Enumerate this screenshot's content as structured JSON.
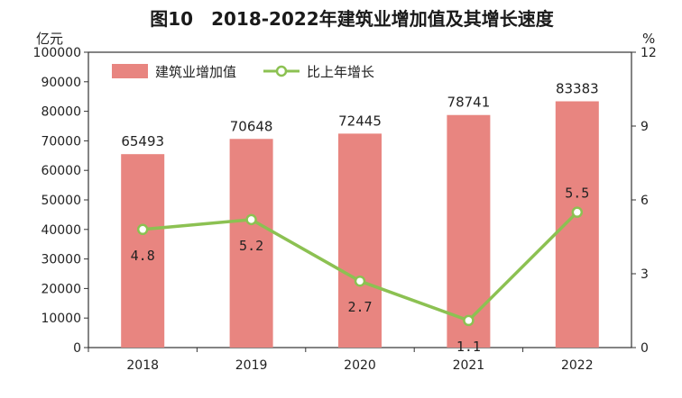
{
  "chart_data": {
    "type": "bar",
    "title": "图10　2018-2022年建筑业增加值及其增长速度",
    "categories": [
      "2018",
      "2019",
      "2020",
      "2021",
      "2022"
    ],
    "series": [
      {
        "name": "建筑业增加值",
        "type": "bar",
        "axis": "left",
        "values": [
          65493,
          70648,
          72445,
          78741,
          83383
        ],
        "labels": [
          "65493",
          "70648",
          "72445",
          "78741",
          "83383"
        ],
        "color": "#e88580"
      },
      {
        "name": "比上年增长",
        "type": "line",
        "axis": "right",
        "values": [
          4.8,
          5.2,
          2.7,
          1.1,
          5.5
        ],
        "labels": [
          "4.8",
          "5.2",
          "2.7",
          "1.1",
          "5.5"
        ],
        "color": "#8cc152"
      }
    ],
    "y_left": {
      "unit": "亿元",
      "range": [
        0,
        100000
      ],
      "ticks": [
        "0",
        "10000",
        "20000",
        "30000",
        "40000",
        "50000",
        "60000",
        "70000",
        "80000",
        "90000",
        "100000"
      ]
    },
    "y_right": {
      "unit": "%",
      "range": [
        0,
        12
      ],
      "ticks": [
        "0",
        "3",
        "6",
        "9",
        "12"
      ]
    },
    "legend_position": "top-left",
    "grid": false
  }
}
